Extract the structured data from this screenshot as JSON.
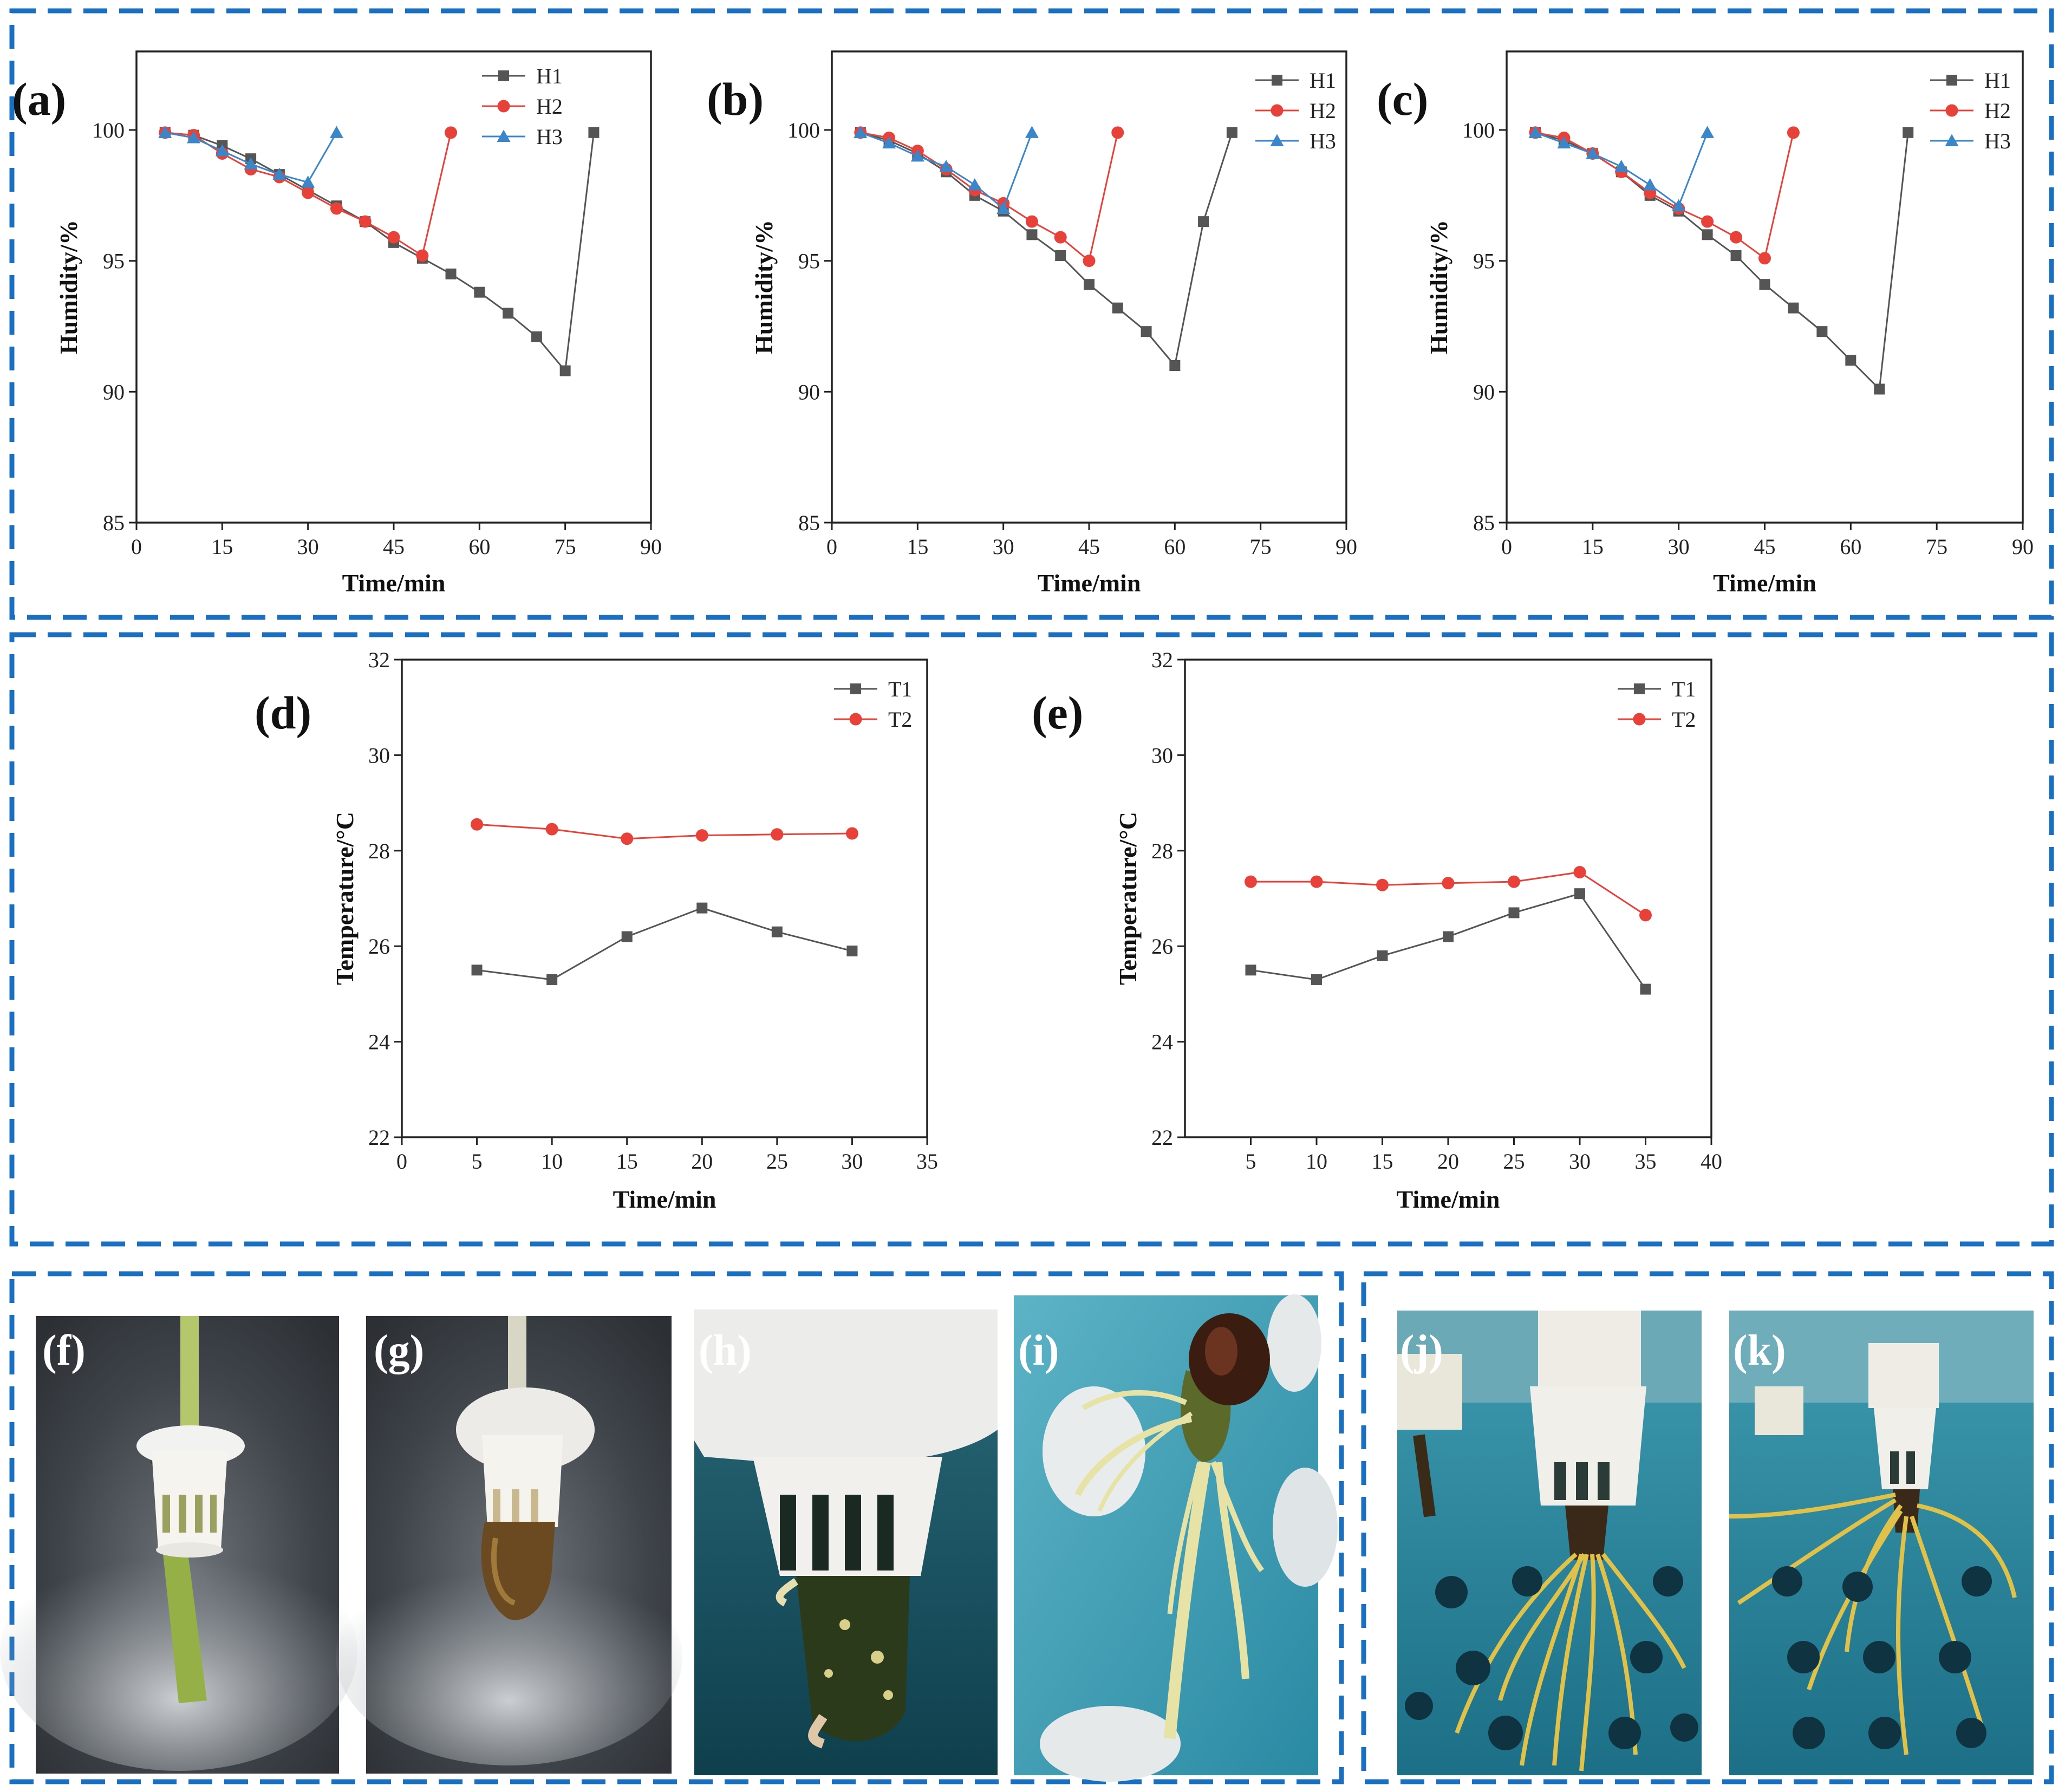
{
  "chart_data": [
    {
      "type": "line",
      "panel": "(a)",
      "xlabel": "Time/min",
      "ylabel": "Humidity/%",
      "xlim": [
        0,
        90
      ],
      "ylim": [
        85,
        103
      ],
      "xticks": [
        0,
        15,
        30,
        45,
        60,
        75,
        90
      ],
      "yticks": [
        85,
        90,
        95,
        100
      ],
      "legend_position": "top-right",
      "series": [
        {
          "name": "H1",
          "color": "#555555",
          "marker": "square",
          "x": [
            5,
            10,
            15,
            20,
            25,
            30,
            35,
            40,
            45,
            50,
            55,
            60,
            65,
            70,
            75,
            80
          ],
          "y": [
            99.9,
            99.8,
            99.4,
            98.9,
            98.3,
            97.7,
            97.1,
            96.5,
            95.7,
            95.1,
            94.5,
            93.8,
            93.0,
            92.1,
            90.8,
            99.9
          ]
        },
        {
          "name": "H2",
          "color": "#e8413a",
          "marker": "circle",
          "x": [
            5,
            10,
            15,
            20,
            25,
            30,
            35,
            40,
            45,
            50,
            55
          ],
          "y": [
            99.9,
            99.8,
            99.1,
            98.5,
            98.2,
            97.6,
            97.0,
            96.5,
            95.9,
            95.2,
            99.9
          ]
        },
        {
          "name": "H3",
          "color": "#3a86c8",
          "marker": "triangle",
          "x": [
            5,
            10,
            15,
            20,
            25,
            30,
            35
          ],
          "y": [
            99.9,
            99.7,
            99.2,
            98.7,
            98.3,
            98.0,
            99.9
          ]
        }
      ]
    },
    {
      "type": "line",
      "panel": "(b)",
      "xlabel": "Time/min",
      "ylabel": "Humidity/%",
      "xlim": [
        0,
        90
      ],
      "ylim": [
        85,
        103
      ],
      "xticks": [
        0,
        15,
        30,
        45,
        60,
        75,
        90
      ],
      "yticks": [
        85,
        90,
        95,
        100
      ],
      "legend_position": "top-right",
      "series": [
        {
          "name": "H1",
          "color": "#555555",
          "marker": "square",
          "x": [
            5,
            10,
            15,
            20,
            25,
            30,
            35,
            40,
            45,
            50,
            55,
            60,
            65,
            70
          ],
          "y": [
            99.9,
            99.6,
            99.1,
            98.4,
            97.5,
            96.9,
            96.0,
            95.2,
            94.1,
            93.2,
            92.3,
            91.0,
            96.5,
            99.9
          ]
        },
        {
          "name": "H2",
          "color": "#e8413a",
          "marker": "circle",
          "x": [
            5,
            10,
            15,
            20,
            25,
            30,
            35,
            40,
            45,
            50
          ],
          "y": [
            99.9,
            99.7,
            99.2,
            98.5,
            97.7,
            97.2,
            96.5,
            95.9,
            95.0,
            99.9
          ]
        },
        {
          "name": "H3",
          "color": "#3a86c8",
          "marker": "triangle",
          "x": [
            5,
            10,
            15,
            20,
            25,
            30,
            35
          ],
          "y": [
            99.9,
            99.5,
            99.0,
            98.6,
            97.9,
            97.0,
            99.9
          ]
        }
      ]
    },
    {
      "type": "line",
      "panel": "(c)",
      "xlabel": "Time/min",
      "ylabel": "Humidity/%",
      "xlim": [
        0,
        90
      ],
      "ylim": [
        85,
        103
      ],
      "xticks": [
        0,
        15,
        30,
        45,
        60,
        75,
        90
      ],
      "yticks": [
        85,
        90,
        95,
        100
      ],
      "legend_position": "top-right",
      "series": [
        {
          "name": "H1",
          "color": "#555555",
          "marker": "square",
          "x": [
            5,
            10,
            15,
            20,
            25,
            30,
            35,
            40,
            45,
            50,
            55,
            60,
            65,
            70
          ],
          "y": [
            99.9,
            99.6,
            99.1,
            98.4,
            97.5,
            96.9,
            96.0,
            95.2,
            94.1,
            93.2,
            92.3,
            91.2,
            90.1,
            99.9
          ]
        },
        {
          "name": "H2",
          "color": "#e8413a",
          "marker": "circle",
          "x": [
            5,
            10,
            15,
            20,
            25,
            30,
            35,
            40,
            45,
            50
          ],
          "y": [
            99.9,
            99.7,
            99.1,
            98.4,
            97.6,
            97.0,
            96.5,
            95.9,
            95.1,
            99.9
          ]
        },
        {
          "name": "H3",
          "color": "#3a86c8",
          "marker": "triangle",
          "x": [
            5,
            10,
            15,
            20,
            25,
            30,
            35
          ],
          "y": [
            99.9,
            99.5,
            99.1,
            98.6,
            97.9,
            97.1,
            99.9
          ]
        }
      ]
    },
    {
      "type": "line",
      "panel": "(d)",
      "xlabel": "Time/min",
      "ylabel": "Temperature/°C",
      "xlim": [
        0,
        35
      ],
      "ylim": [
        22,
        32
      ],
      "xticks": [
        0,
        5,
        10,
        15,
        20,
        25,
        30,
        35
      ],
      "yticks": [
        22,
        24,
        26,
        28,
        30,
        32
      ],
      "legend_position": "top-right",
      "series": [
        {
          "name": "T1",
          "color": "#555555",
          "marker": "square",
          "x": [
            5,
            10,
            15,
            20,
            25,
            30
          ],
          "y": [
            25.5,
            25.3,
            26.2,
            26.8,
            26.3,
            25.9
          ]
        },
        {
          "name": "T2",
          "color": "#e8413a",
          "marker": "circle",
          "x": [
            5,
            10,
            15,
            20,
            25,
            30
          ],
          "y": [
            28.55,
            28.45,
            28.25,
            28.32,
            28.34,
            28.36
          ]
        }
      ]
    },
    {
      "type": "line",
      "panel": "(e)",
      "xlabel": "Time/min",
      "ylabel": "Temperature/°C",
      "xlim": [
        0,
        40
      ],
      "ylim": [
        22,
        32
      ],
      "xticks": [
        5,
        10,
        15,
        20,
        25,
        30,
        35,
        40
      ],
      "yticks": [
        22,
        24,
        26,
        28,
        30,
        32
      ],
      "legend_position": "top-right",
      "series": [
        {
          "name": "T1",
          "color": "#555555",
          "marker": "square",
          "x": [
            5,
            10,
            15,
            20,
            25,
            30,
            35
          ],
          "y": [
            25.5,
            25.3,
            25.8,
            26.2,
            26.7,
            27.1,
            25.1
          ]
        },
        {
          "name": "T2",
          "color": "#e8413a",
          "marker": "circle",
          "x": [
            5,
            10,
            15,
            20,
            25,
            30,
            35
          ],
          "y": [
            27.35,
            27.35,
            27.28,
            27.32,
            27.35,
            27.55,
            26.65
          ]
        }
      ]
    }
  ],
  "photos": [
    {
      "label": "(f)",
      "description": "white net pot on green stem"
    },
    {
      "label": "(g)",
      "description": "white net pot on browned stem"
    },
    {
      "label": "(h)",
      "description": "net pot close-up with new root tip"
    },
    {
      "label": "(i)",
      "description": "stem cutting with white roots"
    },
    {
      "label": "(j)",
      "description": "cutting with roots in aeroponic chamber"
    },
    {
      "label": "(k)",
      "description": "cutting with long yellow roots in chamber"
    }
  ],
  "colors": {
    "frame": "#1a6fc0",
    "axis": "#222222"
  }
}
